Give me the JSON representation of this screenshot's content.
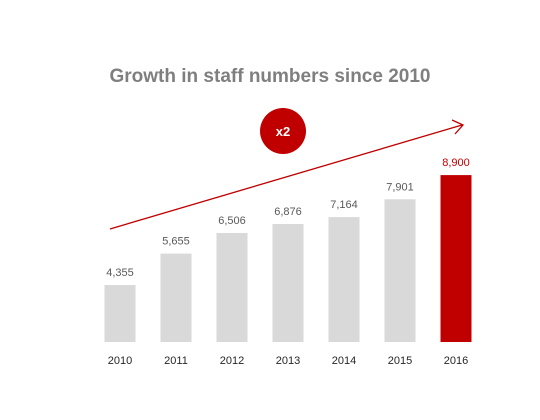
{
  "chart_data": {
    "type": "bar",
    "title": "Growth in staff numbers since 2010",
    "categories": [
      "2010",
      "2011",
      "2012",
      "2013",
      "2014",
      "2015",
      "2016"
    ],
    "values": [
      4355,
      5655,
      6506,
      6876,
      7164,
      7901,
      8900
    ],
    "value_labels": [
      "4,355",
      "5,655",
      "6,506",
      "6,876",
      "7,164",
      "7,901",
      "8,900"
    ],
    "highlight_category": "2016",
    "ylim": [
      2000,
      9400
    ],
    "grid": false,
    "annotation": {
      "text": "x2",
      "shape": "circle-badge",
      "arrow": "trend-up"
    },
    "colors": {
      "bar": "#d9d9d9",
      "highlight": "#c00000",
      "arrow": "#c00000",
      "badge": "#c00000"
    }
  }
}
